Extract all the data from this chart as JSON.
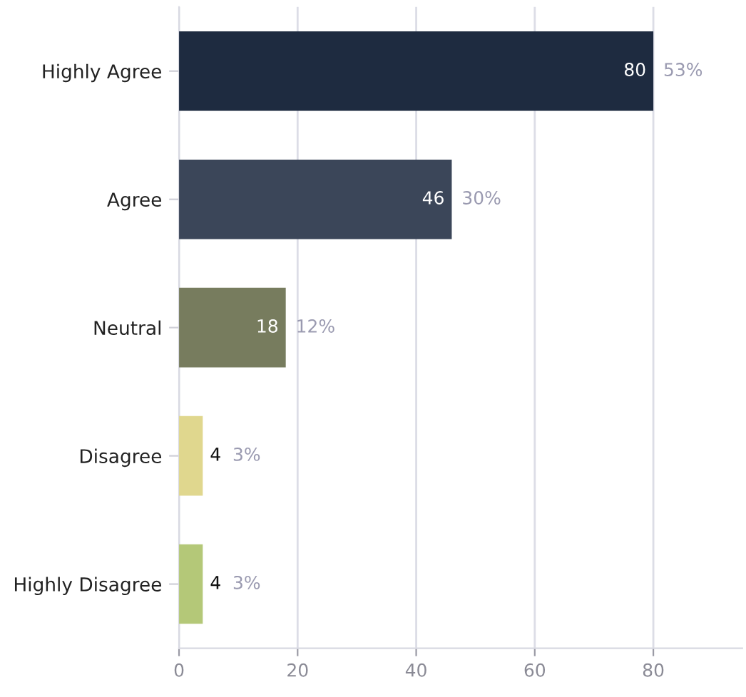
{
  "chart_data": {
    "type": "bar",
    "orientation": "horizontal",
    "categories": [
      "Highly Agree",
      "Agree",
      "Neutral",
      "Disagree",
      "Highly Disagree"
    ],
    "values": [
      80,
      46,
      18,
      4,
      4
    ],
    "colors": [
      "#1e2b40",
      "#3b4659",
      "#777c5e",
      "#e0d78e",
      "#b4c878"
    ],
    "data_labels": true,
    "annotations": [
      {
        "text": "53%",
        "x": 80,
        "y": "Highly Agree"
      },
      {
        "text": "30%",
        "x": 46,
        "y": "Agree"
      },
      {
        "text": "12%",
        "x": 18,
        "y": "Neutral"
      },
      {
        "text": "3%",
        "x": 4,
        "y": "Disagree"
      },
      {
        "text": "3%",
        "x": 4,
        "y": "Highly Disagree"
      }
    ],
    "xlim": [
      0,
      95
    ],
    "xticks": [
      0,
      20,
      40,
      60,
      80
    ],
    "grid": "x"
  }
}
